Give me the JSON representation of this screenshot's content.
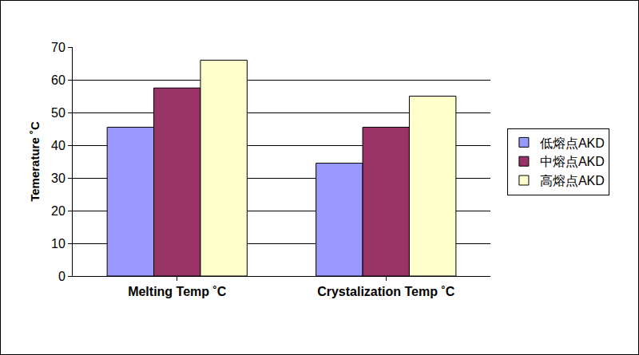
{
  "chart_data": {
    "type": "bar",
    "categories": [
      "Melting Temp ˚C",
      "Crystalization Temp ˚C"
    ],
    "series": [
      {
        "name": "低熔点AKD",
        "color": "#9999ff",
        "values": [
          45.5,
          34.5
        ]
      },
      {
        "name": "中熔点AKD",
        "color": "#993366",
        "values": [
          57.5,
          45.5
        ]
      },
      {
        "name": "高熔点AKD",
        "color": "#ffffcc",
        "values": [
          66,
          55
        ]
      }
    ],
    "y_label": "Temerature ˚C",
    "ylim": [
      0,
      70
    ],
    "yticks": [
      0,
      10,
      20,
      30,
      40,
      50,
      60,
      70
    ],
    "grid": true,
    "legend": "right"
  }
}
